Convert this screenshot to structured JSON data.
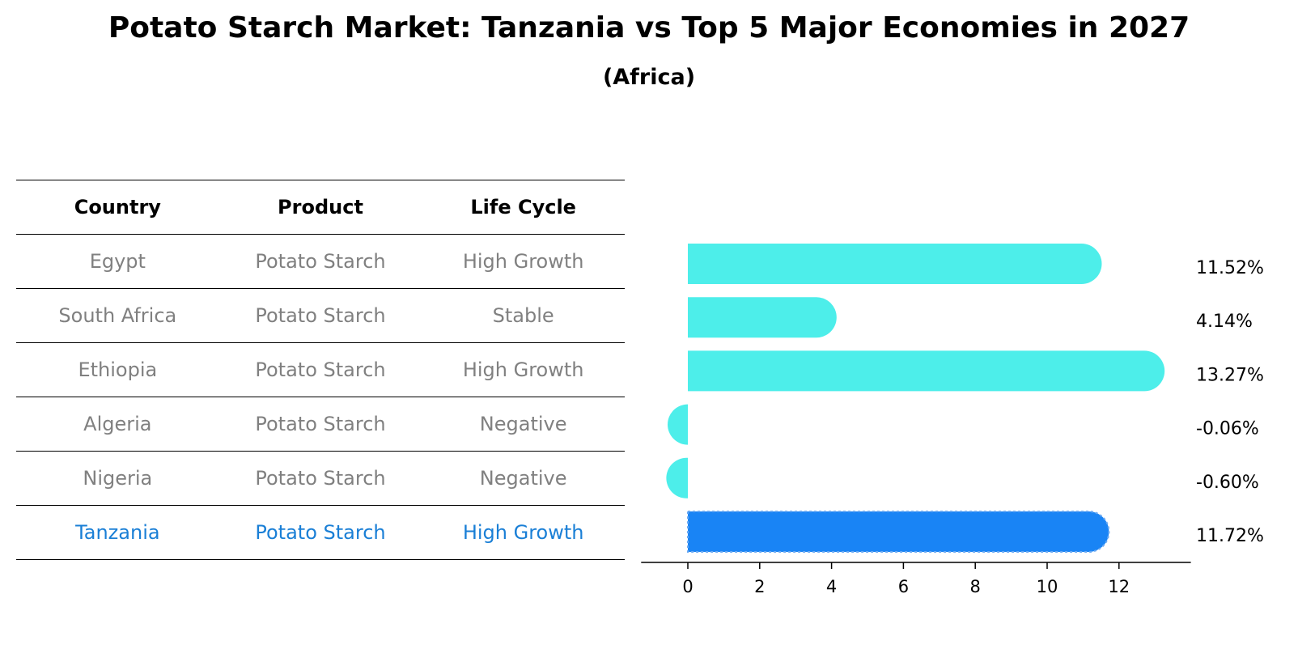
{
  "title": "Potato Starch Market: Tanzania vs Top 5 Major Economies in 2027",
  "subtitle": "(Africa)",
  "table": {
    "headers": [
      "Country",
      "Product",
      "Life Cycle"
    ],
    "rows": [
      {
        "country": "Egypt",
        "product": "Potato Starch",
        "life_cycle": "High Growth"
      },
      {
        "country": "South Africa",
        "product": "Potato Starch",
        "life_cycle": "Stable"
      },
      {
        "country": "Ethiopia",
        "product": "Potato Starch",
        "life_cycle": "High Growth"
      },
      {
        "country": "Algeria",
        "product": "Potato Starch",
        "life_cycle": "Negative"
      },
      {
        "country": "Nigeria",
        "product": "Potato Starch",
        "life_cycle": "Negative"
      },
      {
        "country": "Tanzania",
        "product": "Potato Starch",
        "life_cycle": "High Growth"
      }
    ]
  },
  "chart_data": {
    "type": "bar",
    "orientation": "horizontal",
    "categories": [
      "Egypt",
      "South Africa",
      "Ethiopia",
      "Algeria",
      "Nigeria",
      "Tanzania"
    ],
    "values": [
      11.52,
      4.14,
      13.27,
      -0.06,
      -0.6,
      11.72
    ],
    "value_labels": [
      "11.52%",
      "4.14%",
      "13.27%",
      "-0.06%",
      "-0.60%",
      "11.72%"
    ],
    "highlight": "Tanzania",
    "xticks": [
      0,
      2,
      4,
      6,
      8,
      10,
      12
    ],
    "xlim": [
      -1.3,
      14
    ],
    "colors": {
      "default": "#4deeea",
      "highlight": "#1984f5",
      "highlight_tick": "#1a7fd6"
    },
    "grid": false
  }
}
